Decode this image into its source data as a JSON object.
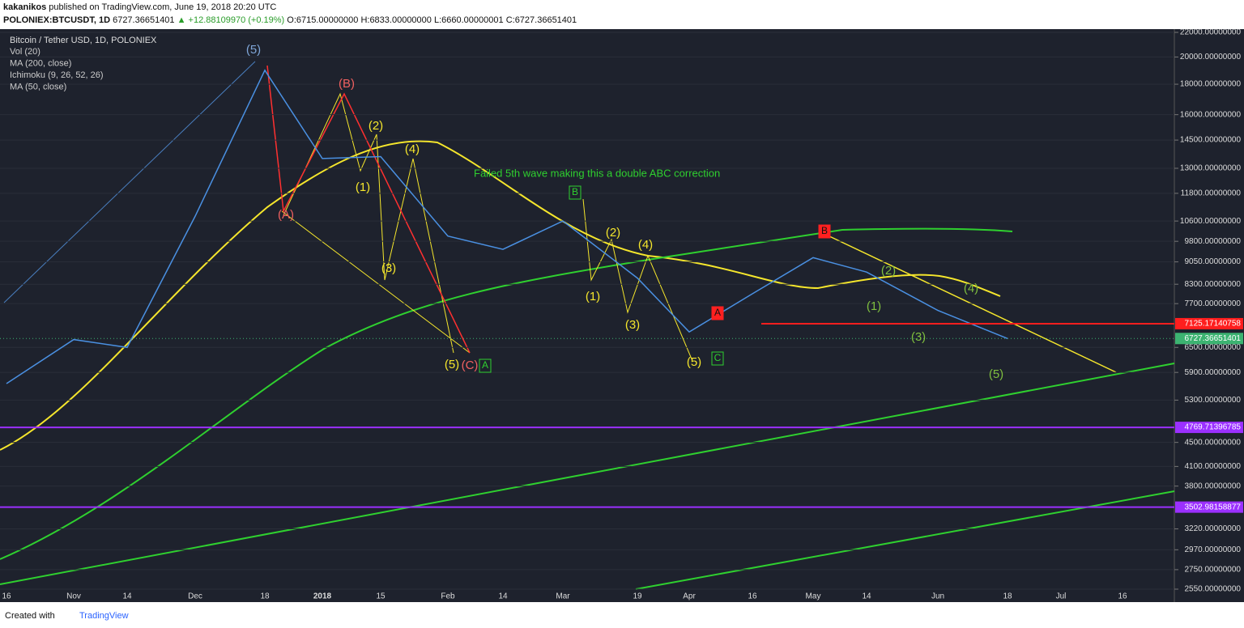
{
  "header": {
    "publisher": "kakanikos",
    "published_text": "published on TradingView.com, June 19, 2018 20:20 UTC",
    "symbol": "POLONIEX:BTCUSDT, 1D",
    "price": "6727.36651401",
    "change": "▲ +12.88109970 (+0.19%)",
    "open": "O:6715.00000000",
    "high": "H:6833.00000000",
    "low": "L:6660.00000001",
    "close": "C:6727.36651401"
  },
  "chart_data": {
    "type": "line",
    "title": "Bitcoin / Tether USD, 1D, POLONIEX",
    "indicators": [
      "Vol (20)",
      "MA (200, close)",
      "Ichimoku (9, 26, 52, 26)",
      "MA (50, close)"
    ],
    "categories": [
      "16",
      "Nov",
      "14",
      "Dec",
      "18",
      "2018",
      "15",
      "Feb",
      "14",
      "Mar",
      "19",
      "Apr",
      "16",
      "May",
      "14",
      "Jun",
      "18",
      "Jul",
      "16"
    ],
    "series": [
      {
        "name": "BTCUSDT",
        "color": "#4a90e2",
        "values": [
          5650,
          6700,
          6500,
          10800,
          19000,
          13500,
          13600,
          10000,
          9500,
          10600,
          8500,
          6900,
          8000,
          9200,
          8700,
          7500,
          6727.36651401,
          null,
          null
        ]
      }
    ],
    "log_scale": true,
    "ylim": [
      2550,
      22000
    ],
    "yticks": [
      {
        "value": 22000,
        "label": "22000.00000000"
      },
      {
        "value": 20000,
        "label": "20000.00000000"
      },
      {
        "value": 18000,
        "label": "18000.00000000"
      },
      {
        "value": 16000,
        "label": "16000.00000000"
      },
      {
        "value": 14500,
        "label": "14500.00000000"
      },
      {
        "value": 13000,
        "label": "13000.00000000"
      },
      {
        "value": 11800,
        "label": "11800.00000000"
      },
      {
        "value": 10600,
        "label": "10600.00000000"
      },
      {
        "value": 9800,
        "label": "9800.00000000"
      },
      {
        "value": 9050,
        "label": "9050.00000000"
      },
      {
        "value": 8300,
        "label": "8300.00000000"
      },
      {
        "value": 7700,
        "label": "7700.00000000"
      },
      {
        "value": 6500,
        "label": "6500.00000000"
      },
      {
        "value": 5900,
        "label": "5900.00000000"
      },
      {
        "value": 5300,
        "label": "5300.00000000"
      },
      {
        "value": 4500,
        "label": "4500.00000000"
      },
      {
        "value": 4100,
        "label": "4100.00000000"
      },
      {
        "value": 3800,
        "label": "3800.00000000"
      },
      {
        "value": 3220,
        "label": "3220.00000000"
      },
      {
        "value": 2970,
        "label": "2970.00000000"
      },
      {
        "value": 2750,
        "label": "2750.00000000"
      },
      {
        "value": 2550,
        "label": "2550.00000000"
      }
    ],
    "hlines": [
      {
        "value": 7125.17140758,
        "color": "#ff1e1e"
      },
      {
        "value": 4769.71396785,
        "color": "#9b30ff"
      },
      {
        "value": 3502.98158877,
        "color": "#9b30ff"
      }
    ],
    "last_price": {
      "value": 6727.36651401,
      "color": "#3cb371"
    },
    "note": "Failed 5th wave making this a double ABC correction",
    "annotations": [
      {
        "text": "(5)",
        "color": "#7fa6d8"
      },
      {
        "text": "(B)",
        "color": "#f06060"
      },
      {
        "text": "(A)",
        "color": "#f06060"
      },
      {
        "text": "(C)",
        "color": "#f06060"
      },
      {
        "text": "(2)",
        "color": "#f5e62c"
      },
      {
        "text": "(4)",
        "color": "#f5e62c"
      },
      {
        "text": "(1)",
        "color": "#f5e62c"
      },
      {
        "text": "(3)",
        "color": "#f5e62c"
      },
      {
        "text": "(5)",
        "color": "#f5e62c"
      },
      {
        "text": "A",
        "color": "#2fd02f"
      },
      {
        "text": "B",
        "color": "#2fd02f"
      },
      {
        "text": "(2)",
        "color": "#f5e62c"
      },
      {
        "text": "(4)",
        "color": "#f5e62c"
      },
      {
        "text": "(1)",
        "color": "#f5e62c"
      },
      {
        "text": "(3)",
        "color": "#f5e62c"
      },
      {
        "text": "(5)",
        "color": "#f5e62c"
      },
      {
        "text": "A",
        "color": "#ff2020"
      },
      {
        "text": "C",
        "color": "#2fd02f"
      },
      {
        "text": "B",
        "color": "#ff2020"
      },
      {
        "text": "(2)",
        "color": "#7fbf3f"
      },
      {
        "text": "(4)",
        "color": "#7fbf3f"
      },
      {
        "text": "(1)",
        "color": "#7fbf3f"
      },
      {
        "text": "(3)",
        "color": "#7fbf3f"
      },
      {
        "text": "(5)",
        "color": "#7fbf3f"
      }
    ]
  },
  "footer": {
    "created": "Created with",
    "brand": "TradingView"
  }
}
